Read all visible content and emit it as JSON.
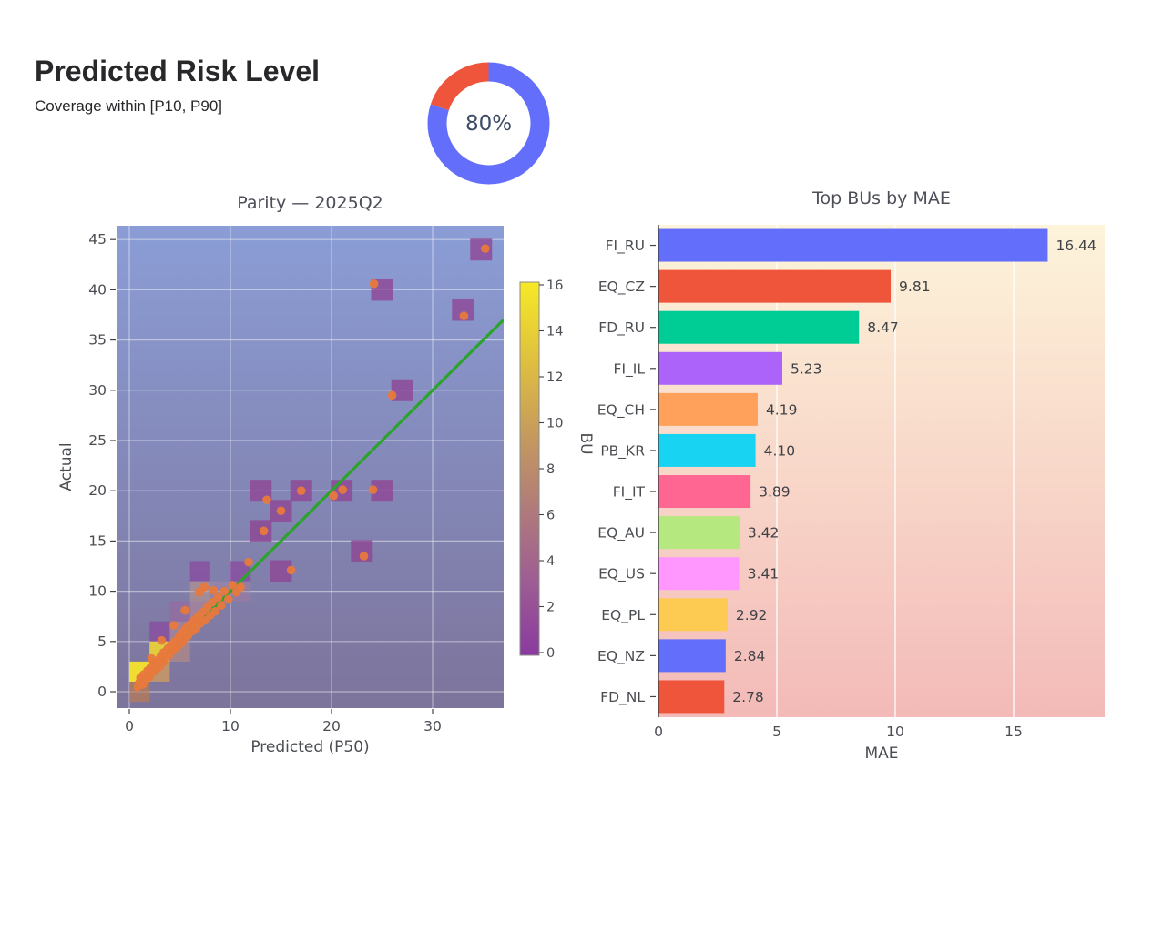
{
  "header": {
    "title": "Predicted Risk Level",
    "subtitle": "Coverage within [P10, P90]"
  },
  "donut": {
    "label": "80%",
    "percent": 80,
    "filled_color": "#636EFA",
    "rest_color": "#EF553B",
    "text_color": "#3C4A66"
  },
  "chart_data": [
    {
      "id": "parity",
      "type": "scatter",
      "title": "Parity — 2025Q2",
      "xlabel": "Predicted (P50)",
      "ylabel": "Actual",
      "xlim": [
        -1.3,
        37.0
      ],
      "ylim": [
        -1.6,
        46.4
      ],
      "xticks": [
        0,
        10,
        20,
        30
      ],
      "yticks": [
        0,
        5,
        10,
        15,
        20,
        25,
        30,
        35,
        40,
        45
      ],
      "grid": true,
      "bg_gradient_top": "#8B9DD6",
      "bg_gradient_bottom": "#7D749B",
      "gridline_color": "rgba(255,255,255,0.45)",
      "identity_line": {
        "x": [
          0.4,
          37.0
        ],
        "y": [
          0.4,
          37.0
        ],
        "color": "#2CA32C"
      },
      "point_color": "#E8793C",
      "square_color": "#8E4494",
      "outlier_squares": [
        [
          13,
          20
        ],
        [
          17,
          20
        ],
        [
          21,
          20
        ],
        [
          25,
          20
        ],
        [
          15,
          18
        ],
        [
          13,
          16
        ],
        [
          15,
          12
        ],
        [
          23,
          14
        ],
        [
          27,
          30
        ],
        [
          25,
          40
        ],
        [
          33,
          38
        ],
        [
          34.8,
          44
        ]
      ],
      "density_bins": [
        {
          "x": 1,
          "y": 0,
          "color": "#C07B4F",
          "opacity": 0.65
        },
        {
          "x": 1,
          "y": 2,
          "color": "#F7E32C",
          "opacity": 0.95
        },
        {
          "x": 3,
          "y": 2,
          "color": "#E8A94F",
          "opacity": 0.6
        },
        {
          "x": 3,
          "y": 4,
          "color": "#F2D930",
          "opacity": 0.85
        },
        {
          "x": 3,
          "y": 6,
          "color": "#8A3D9C",
          "opacity": 0.6
        },
        {
          "x": 5,
          "y": 4,
          "color": "#C2907E",
          "opacity": 0.55
        },
        {
          "x": 5,
          "y": 6,
          "color": "#BC8895",
          "opacity": 0.5
        },
        {
          "x": 5,
          "y": 8,
          "color": "#A0629C",
          "opacity": 0.5
        },
        {
          "x": 7,
          "y": 8,
          "color": "#BC8895",
          "opacity": 0.5
        },
        {
          "x": 7,
          "y": 10,
          "color": "#C29A85",
          "opacity": 0.5
        },
        {
          "x": 7,
          "y": 12,
          "color": "#8A3D9C",
          "opacity": 0.62
        },
        {
          "x": 9,
          "y": 10,
          "color": "#B08CA8",
          "opacity": 0.4
        },
        {
          "x": 11,
          "y": 10,
          "color": "#A87CA0",
          "opacity": 0.45
        },
        {
          "x": 11,
          "y": 12,
          "color": "#8A3D9C",
          "opacity": 0.62
        }
      ],
      "points": [
        [
          0.8,
          0.5
        ],
        [
          1,
          0.9
        ],
        [
          1.1,
          1.4
        ],
        [
          1.3,
          0.7
        ],
        [
          1.4,
          1.7
        ],
        [
          1.6,
          1.2
        ],
        [
          1.8,
          2.1
        ],
        [
          2,
          1.5
        ],
        [
          2.1,
          2.4
        ],
        [
          2.2,
          3.3
        ],
        [
          2.3,
          1.9
        ],
        [
          2.4,
          2.8
        ],
        [
          2.6,
          2.2
        ],
        [
          2.8,
          3.1
        ],
        [
          3,
          2.5
        ],
        [
          3.1,
          3.5
        ],
        [
          3.2,
          5.1
        ],
        [
          3.3,
          2.9
        ],
        [
          3.4,
          3.9
        ],
        [
          3.6,
          3.3
        ],
        [
          3.8,
          4.3
        ],
        [
          4,
          3.7
        ],
        [
          4.1,
          4.6
        ],
        [
          4.3,
          4.1
        ],
        [
          4.4,
          6.6
        ],
        [
          4.5,
          5
        ],
        [
          4.7,
          4.4
        ],
        [
          4.9,
          5.5
        ],
        [
          5.1,
          4.8
        ],
        [
          5.2,
          5.9
        ],
        [
          5.4,
          5.2
        ],
        [
          5.5,
          8.1
        ],
        [
          5.6,
          6.3
        ],
        [
          5.8,
          5.6
        ],
        [
          6,
          6.7
        ],
        [
          6.2,
          6
        ],
        [
          6.4,
          7.1
        ],
        [
          6.6,
          6.3
        ],
        [
          6.8,
          7.5
        ],
        [
          6.9,
          9.9
        ],
        [
          7,
          6.8
        ],
        [
          7.2,
          7.9
        ],
        [
          7.4,
          10.4
        ],
        [
          7.5,
          7.1
        ],
        [
          7.7,
          8.4
        ],
        [
          8,
          7.6
        ],
        [
          8.2,
          8.9
        ],
        [
          8.3,
          10.1
        ],
        [
          8.5,
          8
        ],
        [
          8.8,
          9.4
        ],
        [
          9.1,
          8.6
        ],
        [
          9.4,
          10
        ],
        [
          9.8,
          9.2
        ],
        [
          10.2,
          10.6
        ],
        [
          10.6,
          9.9
        ],
        [
          11,
          10.4
        ],
        [
          11.8,
          12.9
        ],
        [
          16,
          12.1
        ],
        [
          23.2,
          13.5
        ],
        [
          13.3,
          16
        ],
        [
          15,
          18
        ],
        [
          13.6,
          19.1
        ],
        [
          17,
          20
        ],
        [
          20.2,
          19.5
        ],
        [
          21.1,
          20.1
        ],
        [
          24.1,
          20.1
        ],
        [
          26,
          29.5
        ],
        [
          24.2,
          40.6
        ],
        [
          33.1,
          37.4
        ],
        [
          35.2,
          44.1
        ]
      ],
      "colorbar": {
        "label": "BU",
        "ticks": [
          0,
          2,
          4,
          6,
          8,
          10,
          12,
          14,
          16
        ],
        "min": 0,
        "max": 16,
        "gradient": [
          "#8A3A9E",
          "#9D5E93",
          "#B07C79",
          "#C69C5C",
          "#E0C23E",
          "#F6E926"
        ]
      }
    },
    {
      "id": "mae",
      "type": "bar",
      "orientation": "horizontal",
      "title": "Top BUs by MAE",
      "xlabel": "MAE",
      "ylabel": "BU",
      "categories": [
        "FI_RU",
        "EQ_CZ",
        "FD_RU",
        "FI_IL",
        "EQ_CH",
        "PB_KR",
        "FI_IT",
        "EQ_AU",
        "EQ_US",
        "EQ_PL",
        "EQ_NZ",
        "FD_NL"
      ],
      "values": [
        16.44,
        9.81,
        8.47,
        5.23,
        4.19,
        4.1,
        3.89,
        3.42,
        3.41,
        2.92,
        2.84,
        2.78
      ],
      "value_labels": [
        "16.44",
        "9.81",
        "8.47",
        "5.23",
        "4.19",
        "4.10",
        "3.89",
        "3.42",
        "3.41",
        "2.92",
        "2.84",
        "2.78"
      ],
      "bar_colors": [
        "#636EFA",
        "#EF553B",
        "#00CC96",
        "#AB63FA",
        "#FFA15A",
        "#19D3F3",
        "#FF6692",
        "#B6E880",
        "#FF97FF",
        "#FECB52",
        "#636EFA",
        "#EF553B"
      ],
      "xticks": [
        0,
        5,
        10,
        15
      ],
      "xlim": [
        0,
        18.85
      ],
      "grid": true,
      "bg_gradient_top": "#FDF4DA",
      "bg_gradient_bottom": "#F3BAB8",
      "gridline_color": "rgba(255,255,255,0.85)",
      "axis_line_color": "#3A3A3E"
    }
  ]
}
